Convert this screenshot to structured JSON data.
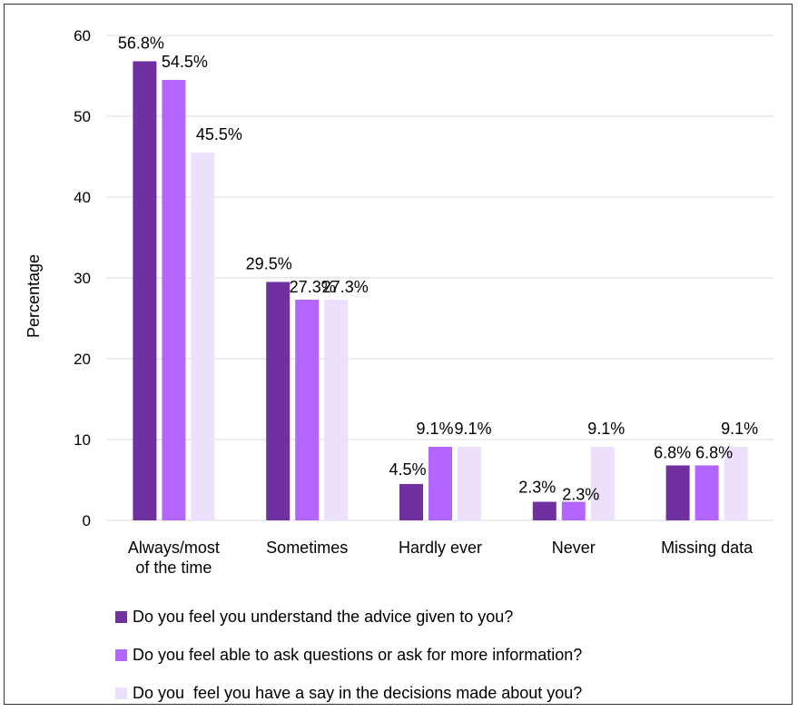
{
  "chart_data": {
    "type": "bar",
    "ylabel": "Percentage",
    "xlabel": "",
    "ylim": [
      0,
      60
    ],
    "yticks": [
      0,
      10,
      20,
      30,
      40,
      50,
      60
    ],
    "grid": true,
    "legend_position": "bottom",
    "categories": [
      [
        "Always/most",
        "of the time"
      ],
      [
        "Sometimes"
      ],
      [
        "Hardly ever"
      ],
      [
        "Never"
      ],
      [
        "Missing data"
      ]
    ],
    "series": [
      {
        "name": "Do you feel you understand the advice given to you?",
        "color": "#7030a0",
        "values": [
          56.8,
          29.5,
          4.5,
          2.3,
          6.8
        ],
        "labels": [
          "56.8%",
          "29.5%",
          "4.5%",
          "2.3%",
          "6.8%"
        ]
      },
      {
        "name": "Do you feel able to ask questions or ask for more information?",
        "color": "#b266ff",
        "values": [
          54.5,
          27.3,
          9.1,
          2.3,
          6.8
        ],
        "labels": [
          "54.5%",
          "27.3%",
          "9.1%",
          "2.3%",
          "6.8%"
        ]
      },
      {
        "name": "Do you  feel you have a say in the decisions made about you?",
        "color": "#ede0fc",
        "values": [
          45.5,
          27.3,
          9.1,
          9.1,
          9.1
        ],
        "labels": [
          "45.5%",
          "27.3%",
          "9.1%",
          "9.1%",
          "9.1%"
        ]
      }
    ]
  }
}
